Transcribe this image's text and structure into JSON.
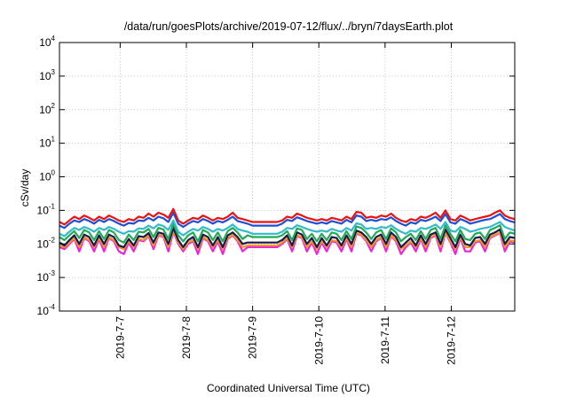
{
  "chart_data": {
    "type": "line",
    "title": "/data/run/goesPlots/archive/2019-07-12/flux/../bryn/7daysEarth.plot",
    "xlabel": "Coordinated Universal Time (UTC)",
    "ylabel": "cSv/day",
    "yscale": "log",
    "ylim": [
      0.0001,
      10000
    ],
    "xlim": [
      "2019-07-06T02:00",
      "2019-07-12T23:00"
    ],
    "grid": true,
    "x_ticks": [
      "2019-7-7",
      "2019-7-8",
      "2019-7-9",
      "2019-7-10",
      "2019-7-11",
      "2019-7-12"
    ],
    "y_ticks": [
      {
        "base": "10",
        "exp": "-4",
        "value": 0.0001
      },
      {
        "base": "10",
        "exp": "-3",
        "value": 0.001
      },
      {
        "base": "10",
        "exp": "-2",
        "value": 0.01
      },
      {
        "base": "10",
        "exp": "-1",
        "value": 0.1
      },
      {
        "base": "10",
        "exp": "0",
        "value": 1
      },
      {
        "base": "10",
        "exp": "1",
        "value": 10
      },
      {
        "base": "10",
        "exp": "2",
        "value": 100
      },
      {
        "base": "10",
        "exp": "3",
        "value": 1000
      },
      {
        "base": "10",
        "exp": "4",
        "value": 10000
      }
    ],
    "series": [
      {
        "color": "#ee1111",
        "pattern": "lines",
        "values": [
          0.045,
          0.038,
          0.05,
          0.065,
          0.055,
          0.07,
          0.06,
          0.05,
          0.065,
          0.055,
          0.07,
          0.06,
          0.05,
          0.045,
          0.055,
          0.05,
          0.065,
          0.06,
          0.08,
          0.065,
          0.085,
          0.075,
          0.06,
          0.11,
          0.05,
          0.04,
          0.05,
          0.06,
          0.055,
          0.07,
          0.06,
          0.05,
          0.06,
          0.055,
          0.065,
          0.085,
          0.06,
          0.055,
          0.05,
          0.045,
          0.045,
          0.045,
          0.045,
          0.045,
          0.045,
          0.05,
          0.065,
          0.06,
          0.08,
          0.07,
          0.06,
          0.055,
          0.05,
          0.055,
          0.05,
          0.06,
          0.055,
          0.05,
          0.065,
          0.055,
          0.09,
          0.085,
          0.06,
          0.065,
          0.06,
          0.07,
          0.065,
          0.08,
          0.06,
          0.05,
          0.045,
          0.055,
          0.05,
          0.065,
          0.06,
          0.07,
          0.085,
          0.06,
          0.1,
          0.055,
          0.05,
          0.07,
          0.06,
          0.05,
          0.055,
          0.06,
          0.065,
          0.07,
          0.085,
          0.1,
          0.07,
          0.06,
          0.055
        ]
      },
      {
        "color": "#1f4fd8",
        "pattern": "lines",
        "values": [
          0.035,
          0.03,
          0.04,
          0.05,
          0.045,
          0.055,
          0.048,
          0.04,
          0.052,
          0.045,
          0.055,
          0.048,
          0.04,
          0.035,
          0.042,
          0.04,
          0.05,
          0.048,
          0.06,
          0.05,
          0.065,
          0.058,
          0.045,
          0.085,
          0.04,
          0.032,
          0.04,
          0.048,
          0.044,
          0.055,
          0.048,
          0.04,
          0.048,
          0.044,
          0.052,
          0.065,
          0.048,
          0.044,
          0.04,
          0.035,
          0.035,
          0.035,
          0.035,
          0.035,
          0.035,
          0.04,
          0.052,
          0.048,
          0.062,
          0.055,
          0.048,
          0.044,
          0.04,
          0.044,
          0.04,
          0.048,
          0.044,
          0.04,
          0.052,
          0.044,
          0.07,
          0.065,
          0.048,
          0.052,
          0.048,
          0.055,
          0.052,
          0.062,
          0.048,
          0.04,
          0.035,
          0.044,
          0.04,
          0.052,
          0.048,
          0.055,
          0.065,
          0.048,
          0.078,
          0.044,
          0.04,
          0.055,
          0.048,
          0.04,
          0.044,
          0.048,
          0.052,
          0.055,
          0.065,
          0.078,
          0.055,
          0.048,
          0.044
        ]
      },
      {
        "color": "#33bbcc",
        "pattern": "lines",
        "values": [
          0.02,
          0.017,
          0.023,
          0.03,
          0.026,
          0.032,
          0.028,
          0.023,
          0.03,
          0.026,
          0.032,
          0.028,
          0.023,
          0.02,
          0.024,
          0.023,
          0.029,
          0.028,
          0.035,
          0.029,
          0.038,
          0.034,
          0.026,
          0.05,
          0.023,
          0.018,
          0.023,
          0.028,
          0.025,
          0.032,
          0.028,
          0.023,
          0.028,
          0.025,
          0.03,
          0.038,
          0.028,
          0.025,
          0.023,
          0.02,
          0.02,
          0.02,
          0.02,
          0.02,
          0.02,
          0.023,
          0.03,
          0.028,
          0.036,
          0.032,
          0.028,
          0.025,
          0.023,
          0.025,
          0.023,
          0.028,
          0.025,
          0.023,
          0.03,
          0.025,
          0.041,
          0.038,
          0.028,
          0.03,
          0.028,
          0.032,
          0.03,
          0.036,
          0.028,
          0.023,
          0.02,
          0.025,
          0.023,
          0.03,
          0.028,
          0.032,
          0.038,
          0.028,
          0.045,
          0.025,
          0.023,
          0.032,
          0.028,
          0.023,
          0.025,
          0.028,
          0.03,
          0.032,
          0.038,
          0.045,
          0.032,
          0.028,
          0.025
        ]
      },
      {
        "color": "#22aa55",
        "pattern": "lines",
        "values": [
          0.016,
          0.013,
          0.018,
          0.024,
          0.015,
          0.026,
          0.022,
          0.013,
          0.024,
          0.014,
          0.026,
          0.022,
          0.013,
          0.011,
          0.019,
          0.013,
          0.023,
          0.022,
          0.028,
          0.016,
          0.03,
          0.027,
          0.014,
          0.04,
          0.018,
          0.012,
          0.018,
          0.022,
          0.012,
          0.026,
          0.022,
          0.013,
          0.022,
          0.012,
          0.024,
          0.03,
          0.022,
          0.014,
          0.018,
          0.016,
          0.016,
          0.016,
          0.016,
          0.016,
          0.016,
          0.018,
          0.024,
          0.013,
          0.029,
          0.026,
          0.014,
          0.02,
          0.012,
          0.02,
          0.013,
          0.022,
          0.02,
          0.013,
          0.024,
          0.014,
          0.033,
          0.03,
          0.022,
          0.014,
          0.022,
          0.026,
          0.014,
          0.029,
          0.022,
          0.012,
          0.016,
          0.02,
          0.013,
          0.024,
          0.014,
          0.026,
          0.03,
          0.014,
          0.036,
          0.02,
          0.012,
          0.026,
          0.014,
          0.013,
          0.02,
          0.022,
          0.014,
          0.026,
          0.03,
          0.036,
          0.014,
          0.022,
          0.02
        ]
      },
      {
        "color": "#1a1a4a",
        "pattern": "lines",
        "values": [
          0.011,
          0.009,
          0.013,
          0.018,
          0.01,
          0.019,
          0.016,
          0.009,
          0.018,
          0.01,
          0.019,
          0.016,
          0.009,
          0.008,
          0.014,
          0.009,
          0.017,
          0.016,
          0.021,
          0.011,
          0.022,
          0.02,
          0.01,
          0.03,
          0.013,
          0.008,
          0.013,
          0.016,
          0.008,
          0.019,
          0.016,
          0.009,
          0.016,
          0.008,
          0.018,
          0.022,
          0.016,
          0.01,
          0.011,
          0.011,
          0.011,
          0.011,
          0.011,
          0.011,
          0.011,
          0.013,
          0.018,
          0.009,
          0.022,
          0.019,
          0.01,
          0.015,
          0.008,
          0.015,
          0.009,
          0.016,
          0.015,
          0.009,
          0.018,
          0.01,
          0.025,
          0.022,
          0.016,
          0.01,
          0.016,
          0.019,
          0.01,
          0.022,
          0.016,
          0.008,
          0.011,
          0.015,
          0.009,
          0.018,
          0.01,
          0.019,
          0.022,
          0.01,
          0.027,
          0.015,
          0.008,
          0.019,
          0.01,
          0.009,
          0.015,
          0.016,
          0.01,
          0.019,
          0.022,
          0.027,
          0.01,
          0.016,
          0.015
        ]
      },
      {
        "color": "#ee9922",
        "pattern": "lines",
        "values": [
          0.009,
          0.008,
          0.011,
          0.015,
          0.008,
          0.016,
          0.013,
          0.008,
          0.015,
          0.008,
          0.016,
          0.013,
          0.008,
          0.007,
          0.012,
          0.008,
          0.014,
          0.013,
          0.018,
          0.009,
          0.019,
          0.017,
          0.008,
          0.025,
          0.011,
          0.007,
          0.011,
          0.013,
          0.007,
          0.016,
          0.013,
          0.008,
          0.013,
          0.007,
          0.015,
          0.019,
          0.013,
          0.008,
          0.009,
          0.009,
          0.009,
          0.009,
          0.009,
          0.009,
          0.009,
          0.011,
          0.015,
          0.008,
          0.018,
          0.016,
          0.008,
          0.012,
          0.007,
          0.012,
          0.008,
          0.013,
          0.012,
          0.008,
          0.015,
          0.008,
          0.021,
          0.019,
          0.013,
          0.008,
          0.013,
          0.016,
          0.008,
          0.018,
          0.013,
          0.007,
          0.009,
          0.012,
          0.008,
          0.015,
          0.008,
          0.016,
          0.019,
          0.008,
          0.022,
          0.012,
          0.007,
          0.016,
          0.008,
          0.008,
          0.012,
          0.013,
          0.008,
          0.016,
          0.019,
          0.022,
          0.008,
          0.013,
          0.012
        ]
      },
      {
        "color": "#ee22dd",
        "pattern": "lines",
        "values": [
          0.008,
          0.007,
          0.01,
          0.014,
          0.006,
          0.015,
          0.012,
          0.006,
          0.014,
          0.006,
          0.015,
          0.012,
          0.006,
          0.005,
          0.011,
          0.006,
          0.013,
          0.012,
          0.017,
          0.007,
          0.018,
          0.016,
          0.006,
          0.023,
          0.01,
          0.006,
          0.01,
          0.012,
          0.005,
          0.015,
          0.012,
          0.006,
          0.012,
          0.005,
          0.014,
          0.018,
          0.012,
          0.006,
          0.008,
          0.008,
          0.008,
          0.008,
          0.008,
          0.008,
          0.008,
          0.01,
          0.014,
          0.006,
          0.017,
          0.015,
          0.006,
          0.011,
          0.005,
          0.011,
          0.006,
          0.012,
          0.011,
          0.006,
          0.014,
          0.006,
          0.02,
          0.018,
          0.012,
          0.006,
          0.012,
          0.015,
          0.006,
          0.017,
          0.012,
          0.005,
          0.008,
          0.011,
          0.006,
          0.014,
          0.006,
          0.015,
          0.018,
          0.006,
          0.021,
          0.011,
          0.005,
          0.015,
          0.006,
          0.006,
          0.011,
          0.012,
          0.006,
          0.015,
          0.018,
          0.021,
          0.006,
          0.012,
          0.011
        ]
      }
    ]
  }
}
